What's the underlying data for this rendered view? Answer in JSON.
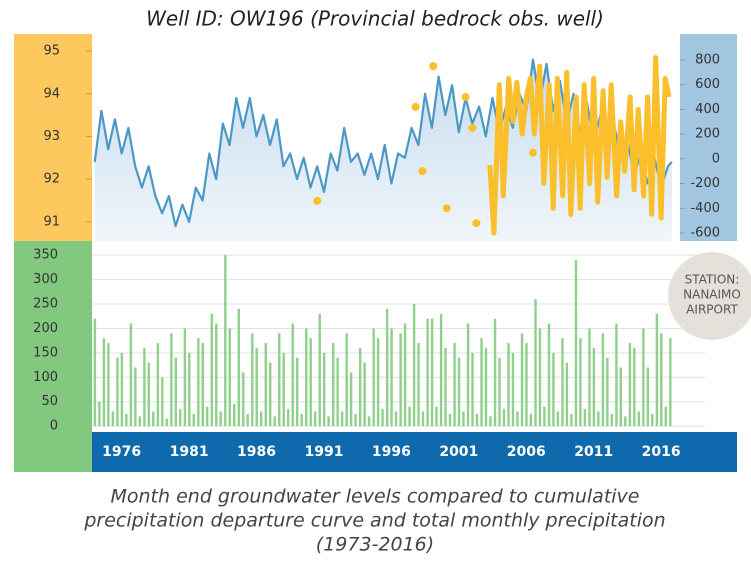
{
  "chart_data": [
    {
      "type": "line",
      "title": "Well ID: OW196  (Provincial bedrock obs. well)",
      "xlim": [
        1973.8,
        2017.4
      ],
      "ylim": [
        90.55,
        95.4
      ],
      "yticks": [
        91,
        92,
        93,
        94,
        95
      ],
      "y2lim": [
        -665,
        1010
      ],
      "y2ticks": [
        -600,
        -400,
        -200,
        0,
        200,
        400,
        600,
        800
      ],
      "series": [
        {
          "type": "line",
          "color": "#4a98c6",
          "x": [
            1974,
            1974.5,
            1975,
            1975.5,
            1976,
            1976.5,
            1977,
            1977.5,
            1978,
            1978.5,
            1979,
            1979.5,
            1980,
            1980.5,
            1981,
            1981.5,
            1982,
            1982.5,
            1983,
            1983.5,
            1984,
            1984.5,
            1985,
            1985.5,
            1986,
            1986.5,
            1987,
            1987.5,
            1988,
            1988.5,
            1989,
            1989.5,
            1990,
            1990.5,
            1991,
            1991.5,
            1992,
            1992.5,
            1993,
            1993.5,
            1994,
            1994.5,
            1995,
            1995.5,
            1996,
            1996.5,
            1997,
            1997.5,
            1998,
            1998.5,
            1999,
            1999.5,
            2000,
            2000.5,
            2001,
            2001.5,
            2002,
            2002.5,
            2003,
            2003.5,
            2004,
            2004.5,
            2005,
            2005.5,
            2006,
            2006.5,
            2007,
            2007.5,
            2008,
            2008.5,
            2009,
            2009.5,
            2010,
            2010.5,
            2011,
            2011.5,
            2012,
            2012.5,
            2013,
            2013.5,
            2014,
            2014.5,
            2015,
            2015.5,
            2016,
            2016.5,
            2016.8
          ],
          "values": [
            92.4,
            93.6,
            92.7,
            93.4,
            92.6,
            93.2,
            92.3,
            91.8,
            92.3,
            91.6,
            91.2,
            91.6,
            90.9,
            91.4,
            91.0,
            91.8,
            91.5,
            92.6,
            92.0,
            93.3,
            92.8,
            93.9,
            93.2,
            93.9,
            93.0,
            93.5,
            92.8,
            93.4,
            92.3,
            92.6,
            92.0,
            92.5,
            91.8,
            92.3,
            91.7,
            92.6,
            92.2,
            93.2,
            92.4,
            92.6,
            92.1,
            92.6,
            92.0,
            92.8,
            91.9,
            92.6,
            92.5,
            93.2,
            92.8,
            94.0,
            93.2,
            94.4,
            93.5,
            94.2,
            93.1,
            93.9,
            93.3,
            93.7,
            93.0,
            93.9,
            93.1,
            93.7,
            93.2,
            94.0,
            93.6,
            94.8,
            93.8,
            94.7,
            93.6,
            94.3,
            93.3,
            94.0,
            93.1,
            93.8,
            92.9,
            93.5,
            92.7,
            93.3,
            92.5,
            92.9,
            92.1,
            92.6,
            91.9,
            92.5,
            91.8,
            92.3,
            92.4
          ]
        },
        {
          "type": "scatter",
          "axis": "y2",
          "color": "#fbbf2b",
          "x": [
            1990.5,
            1997.8,
            1998.3,
            1999.1,
            2000.1,
            2001.5,
            2002.0,
            2002.3,
            2006.5
          ],
          "values": [
            -340,
            420,
            -100,
            750,
            -400,
            500,
            250,
            -520,
            50
          ]
        },
        {
          "type": "line",
          "axis": "y2",
          "color": "#fbbf2b",
          "x": [
            2003.3,
            2003.6,
            2004.0,
            2004.3,
            2004.7,
            2005.0,
            2005.3,
            2005.7,
            2006.0,
            2006.3,
            2006.6,
            2007.0,
            2007.3,
            2007.7,
            2008.0,
            2008.3,
            2008.7,
            2009.0,
            2009.3,
            2009.7,
            2010.0,
            2010.3,
            2010.7,
            2011.0,
            2011.3,
            2011.7,
            2012.0,
            2012.3,
            2012.7,
            2013.0,
            2013.3,
            2013.7,
            2014.0,
            2014.3,
            2014.7,
            2015.0,
            2015.3,
            2015.6,
            2016.0,
            2016.3,
            2016.6
          ],
          "values": [
            -50,
            -600,
            600,
            -300,
            650,
            300,
            620,
            200,
            500,
            650,
            200,
            750,
            -200,
            600,
            -400,
            650,
            -300,
            700,
            -450,
            500,
            -400,
            600,
            -200,
            650,
            -350,
            550,
            -150,
            600,
            -300,
            300,
            -100,
            500,
            -250,
            400,
            -300,
            500,
            -450,
            820,
            -480,
            650,
            500
          ]
        }
      ]
    },
    {
      "type": "bar",
      "color": "#8fd08a",
      "xlim": [
        1973.8,
        2017.4
      ],
      "xticks": [
        1976,
        1981,
        1986,
        1991,
        1996,
        2001,
        2006,
        2011,
        2016
      ],
      "ylim": [
        -12,
        379
      ],
      "yticks": [
        0,
        50,
        100,
        150,
        200,
        250,
        300,
        350
      ],
      "grid": true,
      "annotation": [
        "STATION:",
        "NANAIMO",
        "AIRPORT"
      ],
      "caption": [
        "Month end groundwater levels compared to cumulative",
        "precipitation departure curve and total monthly precipitation",
        "(1973-2016)"
      ],
      "x": [
        1974,
        1974.33,
        1974.67,
        1975,
        1975.33,
        1975.67,
        1976,
        1976.33,
        1976.67,
        1977,
        1977.33,
        1977.67,
        1978,
        1978.33,
        1978.67,
        1979,
        1979.33,
        1979.67,
        1980,
        1980.33,
        1980.67,
        1981,
        1981.33,
        1981.67,
        1982,
        1982.33,
        1982.67,
        1983,
        1983.33,
        1983.67,
        1984,
        1984.33,
        1984.67,
        1985,
        1985.33,
        1985.67,
        1986,
        1986.33,
        1986.67,
        1987,
        1987.33,
        1987.67,
        1988,
        1988.33,
        1988.67,
        1989,
        1989.33,
        1989.67,
        1990,
        1990.33,
        1990.67,
        1991,
        1991.33,
        1991.67,
        1992,
        1992.33,
        1992.67,
        1993,
        1993.33,
        1993.67,
        1994,
        1994.33,
        1994.67,
        1995,
        1995.33,
        1995.67,
        1996,
        1996.33,
        1996.67,
        1997,
        1997.33,
        1997.67,
        1998,
        1998.33,
        1998.67,
        1999,
        1999.33,
        1999.67,
        2000,
        2000.33,
        2000.67,
        2001,
        2001.33,
        2001.67,
        2002,
        2002.33,
        2002.67,
        2003,
        2003.33,
        2003.67,
        2004,
        2004.33,
        2004.67,
        2005,
        2005.33,
        2005.67,
        2006,
        2006.33,
        2006.67,
        2007,
        2007.33,
        2007.67,
        2008,
        2008.33,
        2008.67,
        2009,
        2009.33,
        2009.67,
        2010,
        2010.33,
        2010.67,
        2011,
        2011.33,
        2011.67,
        2012,
        2012.33,
        2012.67,
        2013,
        2013.33,
        2013.67,
        2014,
        2014.33,
        2014.67,
        2015,
        2015.33,
        2015.67,
        2016,
        2016.33,
        2016.67
      ],
      "values": [
        220,
        50,
        180,
        170,
        30,
        140,
        150,
        25,
        210,
        120,
        20,
        160,
        130,
        30,
        170,
        100,
        15,
        190,
        140,
        35,
        200,
        150,
        25,
        180,
        170,
        40,
        230,
        210,
        30,
        350,
        200,
        45,
        240,
        110,
        25,
        190,
        160,
        30,
        170,
        130,
        20,
        190,
        150,
        35,
        210,
        140,
        25,
        200,
        180,
        30,
        230,
        150,
        20,
        170,
        140,
        30,
        190,
        110,
        25,
        160,
        130,
        20,
        200,
        180,
        35,
        240,
        200,
        30,
        190,
        210,
        40,
        250,
        170,
        30,
        220,
        220,
        40,
        230,
        160,
        25,
        170,
        140,
        30,
        210,
        150,
        25,
        180,
        160,
        20,
        220,
        140,
        35,
        170,
        150,
        30,
        190,
        170,
        25,
        260,
        200,
        40,
        210,
        150,
        30,
        180,
        130,
        25,
        340,
        180,
        35,
        200,
        160,
        30,
        190,
        140,
        25,
        210,
        120,
        20,
        170,
        160,
        30,
        200,
        120,
        25,
        230,
        190,
        40,
        180
      ]
    }
  ]
}
